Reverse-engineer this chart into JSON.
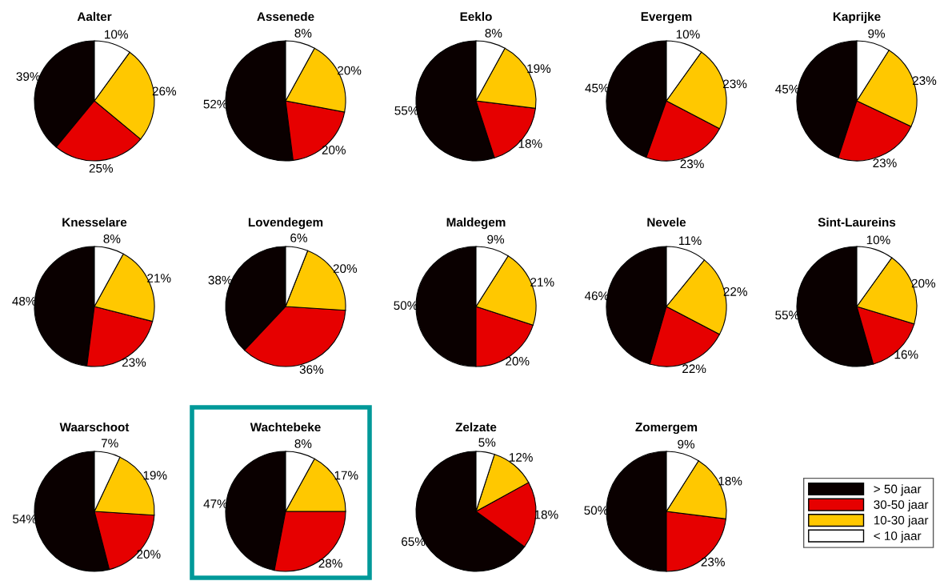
{
  "chart_data": [
    {
      "type": "pie",
      "title": "Aalter",
      "categories": [
        "> 50 jaar",
        "30-50 jaar",
        "10-30 jaar",
        "< 10 jaar"
      ],
      "values": [
        39,
        25,
        26,
        10
      ],
      "value_labels": [
        "39%",
        "25%",
        "26%",
        "10%"
      ],
      "colors": [
        "#0a0000",
        "#e60000",
        "#ffc800",
        "#ffffff"
      ],
      "legend": "bottom right"
    },
    {
      "type": "pie",
      "title": "Assenede",
      "categories": [
        null,
        null,
        null,
        null
      ],
      "values": [
        52,
        20,
        20,
        8
      ],
      "value_labels": [
        "52%",
        "20%",
        "20%",
        "8%"
      ],
      "colors": [
        "#0a0000",
        "#e60000",
        "#ffc800",
        "#ffffff"
      ]
    },
    {
      "type": "pie",
      "title": "Eeklo",
      "categories": [
        null,
        null,
        null,
        null
      ],
      "values": [
        55,
        18,
        19,
        8
      ],
      "value_labels": [
        "55%",
        "18%",
        "19%",
        "8%"
      ],
      "colors": [
        "#0a0000",
        "#e60000",
        "#ffc800",
        "#ffffff"
      ]
    },
    {
      "type": "pie",
      "title": "Evergem",
      "categories": [
        null,
        null,
        null,
        null
      ],
      "values": [
        45,
        23,
        23,
        10
      ],
      "value_labels": [
        "45%",
        "23%",
        "23%",
        "10%"
      ],
      "colors": [
        "#0a0000",
        "#e60000",
        "#ffc800",
        "#ffffff"
      ]
    },
    {
      "type": "pie",
      "title": "Kaprijke",
      "categories": [
        null,
        null,
        null,
        null
      ],
      "values": [
        45,
        23,
        23,
        9
      ],
      "value_labels": [
        "45%",
        "23%",
        "23%",
        "9%"
      ],
      "colors": [
        "#0a0000",
        "#e60000",
        "#ffc800",
        "#ffffff"
      ]
    },
    {
      "type": "pie",
      "title": "Knesselare",
      "categories": [
        null,
        null,
        null,
        null
      ],
      "values": [
        48,
        23,
        21,
        8
      ],
      "value_labels": [
        "48%",
        "23%",
        "21%",
        "8%"
      ],
      "colors": [
        "#0a0000",
        "#e60000",
        "#ffc800",
        "#ffffff"
      ]
    },
    {
      "type": "pie",
      "title": "Lovendegem",
      "categories": [
        null,
        null,
        null,
        null
      ],
      "values": [
        38,
        36,
        20,
        6
      ],
      "value_labels": [
        "38%",
        "36%",
        "20%",
        "6%"
      ],
      "colors": [
        "#0a0000",
        "#e60000",
        "#ffc800",
        "#ffffff"
      ]
    },
    {
      "type": "pie",
      "title": "Maldegem",
      "categories": [
        null,
        null,
        null,
        null
      ],
      "values": [
        50,
        20,
        21,
        9
      ],
      "value_labels": [
        "50%",
        "20%",
        "21%",
        "9%"
      ],
      "colors": [
        "#0a0000",
        "#e60000",
        "#ffc800",
        "#ffffff"
      ]
    },
    {
      "type": "pie",
      "title": "Nevele",
      "categories": [
        null,
        null,
        null,
        null
      ],
      "values": [
        46,
        22,
        22,
        11
      ],
      "value_labels": [
        "46%",
        "22%",
        "22%",
        "11%"
      ],
      "colors": [
        "#0a0000",
        "#e60000",
        "#ffc800",
        "#ffffff"
      ]
    },
    {
      "type": "pie",
      "title": "Sint-Laureins",
      "categories": [
        null,
        null,
        null,
        null
      ],
      "values": [
        55,
        16,
        20,
        10
      ],
      "value_labels": [
        "55%",
        "16%",
        "20%",
        "10%"
      ],
      "colors": [
        "#0a0000",
        "#e60000",
        "#ffc800",
        "#ffffff"
      ]
    },
    {
      "type": "pie",
      "title": "Waarschoot",
      "categories": [
        null,
        null,
        null,
        null
      ],
      "values": [
        54,
        20,
        19,
        7
      ],
      "value_labels": [
        "54%",
        "20%",
        "19%",
        "7%"
      ],
      "colors": [
        "#0a0000",
        "#e60000",
        "#ffc800",
        "#ffffff"
      ]
    },
    {
      "type": "pie",
      "title": "Wachtebeke",
      "categories": [
        null,
        null,
        null,
        null
      ],
      "values": [
        47,
        28,
        17,
        8
      ],
      "value_labels": [
        "47%",
        "28%",
        "17%",
        "8%"
      ],
      "colors": [
        "#0a0000",
        "#e60000",
        "#ffc800",
        "#ffffff"
      ]
    },
    {
      "type": "pie",
      "title": "Zelzate",
      "categories": [
        null,
        null,
        null,
        null
      ],
      "values": [
        65,
        18,
        12,
        5
      ],
      "value_labels": [
        "65%",
        "18%",
        "12%",
        "5%"
      ],
      "colors": [
        "#0a0000",
        "#e60000",
        "#ffc800",
        "#ffffff"
      ]
    },
    {
      "type": "pie",
      "title": "Zomergem",
      "categories": [
        null,
        null,
        null,
        null
      ],
      "values": [
        50,
        23,
        18,
        9
      ],
      "value_labels": [
        "50%",
        "23%",
        "18%",
        "9%"
      ],
      "colors": [
        "#0a0000",
        "#e60000",
        "#ffc800",
        "#ffffff"
      ]
    }
  ]
}
